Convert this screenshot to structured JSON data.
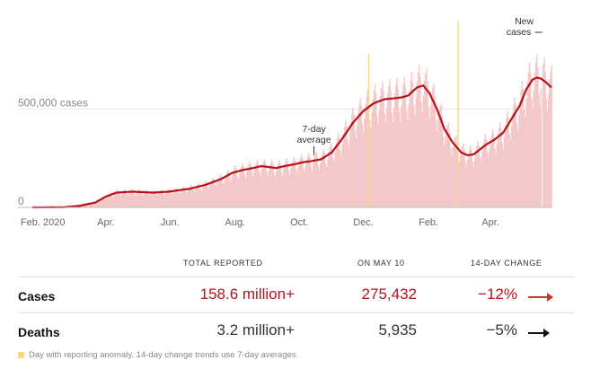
{
  "chart_data": {
    "type": "bar",
    "title": "",
    "xlabel": "",
    "ylabel": "",
    "ylim": [
      0,
      1000000
    ],
    "y_ticks": [
      {
        "value": 0,
        "label": "0"
      },
      {
        "value": 500000,
        "label": "500,000 cases"
      }
    ],
    "x_ticks": [
      {
        "index": 10,
        "label": "Feb. 2020"
      },
      {
        "index": 70,
        "label": "Apr."
      },
      {
        "index": 131,
        "label": "Jun."
      },
      {
        "index": 193,
        "label": "Aug."
      },
      {
        "index": 254,
        "label": "Oct."
      },
      {
        "index": 315,
        "label": "Dec."
      },
      {
        "index": 377,
        "label": "Feb."
      },
      {
        "index": 436,
        "label": "Apr."
      }
    ],
    "start_date": "2020-01-21",
    "end_date": "2021-05-10",
    "series": [
      {
        "name": "7-day average",
        "type": "line",
        "color": "#b5121b",
        "anchors": [
          [
            0,
            0
          ],
          [
            30,
            1000
          ],
          [
            45,
            8000
          ],
          [
            60,
            25000
          ],
          [
            70,
            55000
          ],
          [
            80,
            75000
          ],
          [
            95,
            80000
          ],
          [
            115,
            75000
          ],
          [
            130,
            80000
          ],
          [
            150,
            95000
          ],
          [
            165,
            115000
          ],
          [
            180,
            145000
          ],
          [
            190,
            175000
          ],
          [
            200,
            190000
          ],
          [
            210,
            200000
          ],
          [
            218,
            210000
          ],
          [
            225,
            205000
          ],
          [
            232,
            200000
          ],
          [
            240,
            210000
          ],
          [
            250,
            220000
          ],
          [
            258,
            230000
          ],
          [
            265,
            235000
          ],
          [
            275,
            245000
          ],
          [
            285,
            280000
          ],
          [
            295,
            350000
          ],
          [
            305,
            430000
          ],
          [
            315,
            490000
          ],
          [
            325,
            530000
          ],
          [
            335,
            550000
          ],
          [
            345,
            555000
          ],
          [
            352,
            560000
          ],
          [
            358,
            570000
          ],
          [
            366,
            610000
          ],
          [
            372,
            620000
          ],
          [
            378,
            580000
          ],
          [
            385,
            500000
          ],
          [
            392,
            400000
          ],
          [
            400,
            330000
          ],
          [
            408,
            280000
          ],
          [
            414,
            265000
          ],
          [
            420,
            270000
          ],
          [
            426,
            295000
          ],
          [
            432,
            320000
          ],
          [
            440,
            345000
          ],
          [
            448,
            380000
          ],
          [
            456,
            450000
          ],
          [
            464,
            520000
          ],
          [
            470,
            600000
          ],
          [
            476,
            650000
          ],
          [
            480,
            660000
          ],
          [
            484,
            655000
          ],
          [
            488,
            640000
          ],
          [
            492,
            620000
          ],
          [
            494,
            610000
          ]
        ]
      },
      {
        "name": "New cases",
        "type": "bar",
        "color": "#f4c8c8"
      }
    ],
    "anomaly_days": [
      {
        "index": 405,
        "value": 950000
      },
      {
        "index": 320,
        "value": 780000
      },
      {
        "index": 485,
        "value": 0
      }
    ],
    "annotations": [
      {
        "text_lines": [
          "7-day",
          "average"
        ],
        "target_index": 268
      },
      {
        "text_lines": [
          "New",
          "cases"
        ],
        "target_index": 468
      }
    ]
  },
  "table": {
    "headers": [
      "TOTAL REPORTED",
      "ON MAY 10",
      "14-DAY CHANGE"
    ],
    "rows": [
      {
        "name": "Cases",
        "total": "158.6 million+",
        "day": "275,432",
        "change": "−12%",
        "color": "#b5121b",
        "arrow_color": "#c0392b"
      },
      {
        "name": "Deaths",
        "total": "3.2 million+",
        "day": "5,935",
        "change": "−5%",
        "color": "#333333",
        "arrow_color": "#111111"
      }
    ]
  },
  "footnote": "Day with reporting anomaly. 14-day change trends use 7-day averages."
}
